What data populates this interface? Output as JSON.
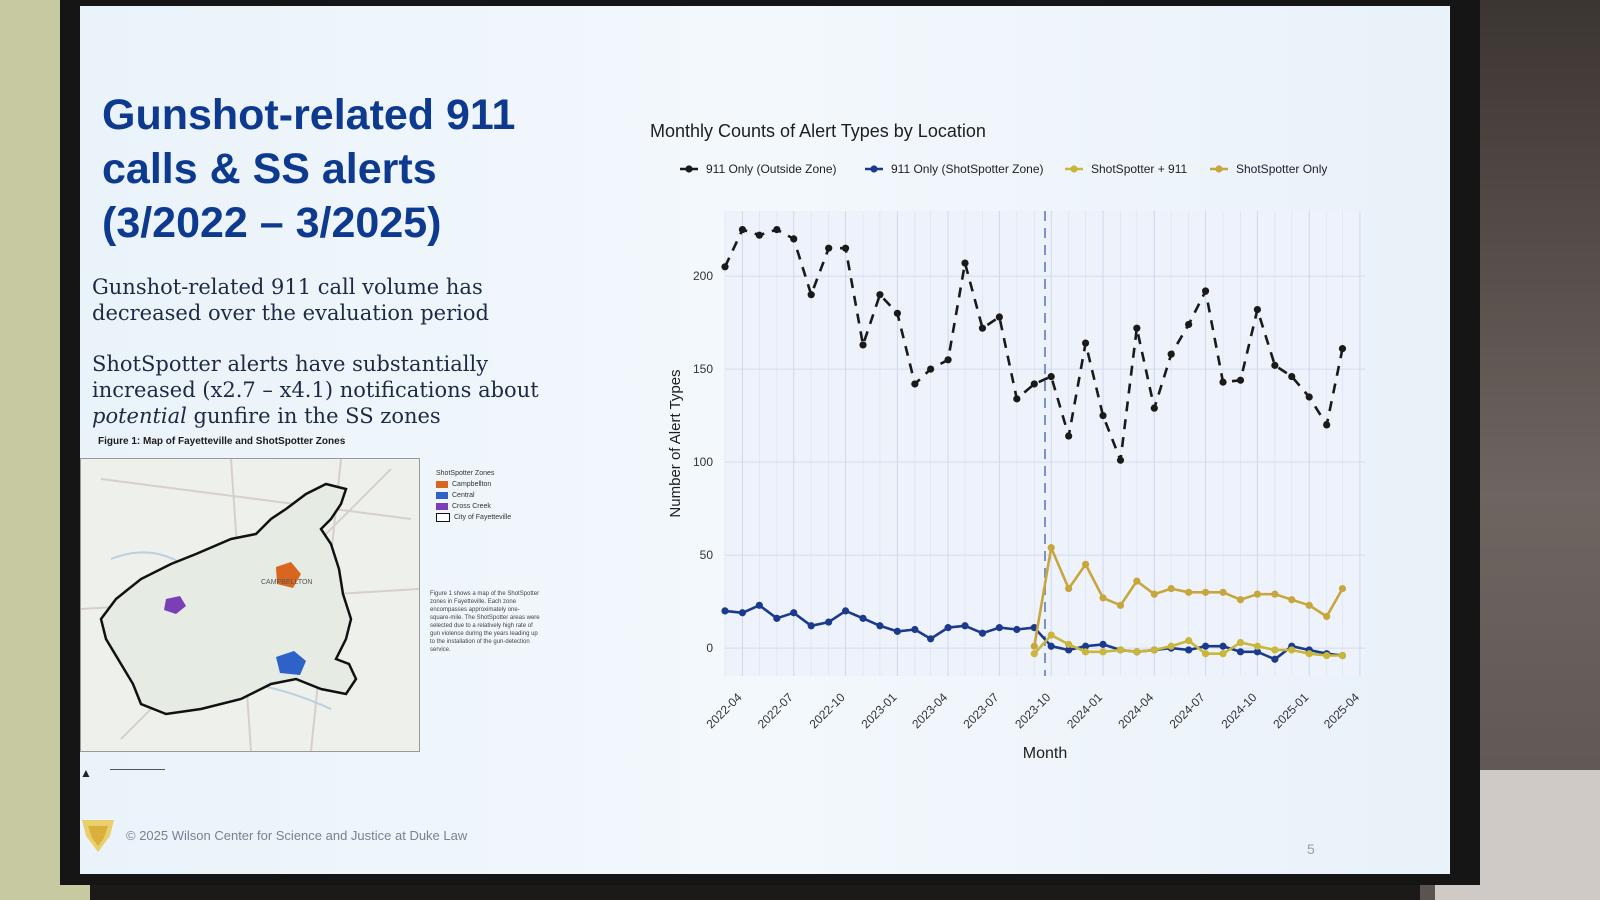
{
  "slide": {
    "title": "Gunshot-related 911\ncalls & SS alerts\n(3/2022 – 3/2025)",
    "bullet1": "Gunshot-related 911 call volume has decreased over the evaluation period",
    "bullet2_part1": "ShotSpotter alerts have substantially increased (x2.7 – x4.1) notifications about ",
    "bullet2_emph": "potential",
    "bullet2_part2": " gunfire in the SS zones",
    "figure_caption": "Figure 1: Map of Fayetteville and ShotSpotter Zones",
    "footer": "© 2025 Wilson Center for Science and Justice at Duke Law",
    "page_number": "5",
    "map": {
      "legend_title": "ShotSpotter Zones",
      "legend_items": [
        {
          "label": "Campbellton",
          "color": "#d9661e"
        },
        {
          "label": "Central",
          "color": "#2f62c8"
        },
        {
          "label": "Cross Creek",
          "color": "#7b3fb5"
        },
        {
          "label": "City of Fayetteville",
          "color": "#ffffff"
        }
      ],
      "area_label": "CAMPBELLTON",
      "note": "Figure 1 shows a map of the ShotSpotter zones in Fayetteville. Each zone encompasses approximately one-square-mile. The ShotSpotter areas were selected due to a relatively high rate of gun violence during the years leading up to the installation of the gun-detection service."
    }
  },
  "chart_data": {
    "type": "line",
    "title": "Monthly Counts of Alert Types by Location",
    "xlabel": "Month",
    "ylabel": "Number of Alert Types",
    "x": [
      "2022-03",
      "2022-04",
      "2022-05",
      "2022-06",
      "2022-07",
      "2022-08",
      "2022-09",
      "2022-10",
      "2022-11",
      "2022-12",
      "2023-01",
      "2023-02",
      "2023-03",
      "2023-04",
      "2023-05",
      "2023-06",
      "2023-07",
      "2023-08",
      "2023-09",
      "2023-10",
      "2023-11",
      "2023-12",
      "2024-01",
      "2024-02",
      "2024-03",
      "2024-04",
      "2024-05",
      "2024-06",
      "2024-07",
      "2024-08",
      "2024-09",
      "2024-10",
      "2024-11",
      "2024-12",
      "2025-01",
      "2025-02",
      "2025-03"
    ],
    "x_tick_labels": [
      "2022-04",
      "2022-07",
      "2022-10",
      "2023-01",
      "2023-04",
      "2023-07",
      "2023-10",
      "2024-01",
      "2024-04",
      "2024-07",
      "2024-10",
      "2025-01",
      "2025-04"
    ],
    "y_ticks": [
      0,
      50,
      100,
      150,
      200
    ],
    "ylim": [
      -15,
      235
    ],
    "event_line_x": "2023-09-20",
    "grid": true,
    "legend_position": "top",
    "series": [
      {
        "name": "911 Only (Outside Zone)",
        "color": "#1a1a1a",
        "dashed": true,
        "values": [
          205,
          225,
          222,
          225,
          220,
          190,
          215,
          215,
          163,
          190,
          180,
          142,
          150,
          155,
          207,
          172,
          178,
          134,
          142,
          146,
          114,
          164,
          125,
          101,
          172,
          129,
          158,
          174,
          192,
          143,
          144,
          182,
          152,
          146,
          135,
          120,
          161
        ]
      },
      {
        "name": "911 Only (ShotSpotter Zone)",
        "color": "#1b3a8c",
        "dashed": false,
        "values": [
          20,
          19,
          23,
          16,
          19,
          12,
          14,
          20,
          16,
          12,
          9,
          10,
          5,
          11,
          12,
          8,
          11,
          10,
          11,
          1,
          -1,
          1,
          2,
          -1,
          -2,
          -1,
          0,
          -1,
          1,
          1,
          -2,
          -2,
          -6,
          1,
          -1,
          -3,
          -4
        ]
      },
      {
        "name": "ShotSpotter + 911",
        "color": "#c9b63a",
        "dashed": false,
        "values": [
          null,
          null,
          null,
          null,
          null,
          null,
          null,
          null,
          null,
          null,
          null,
          null,
          null,
          null,
          null,
          null,
          null,
          null,
          -3,
          7,
          2,
          -2,
          -2,
          -1,
          -2,
          -1,
          1,
          4,
          -3,
          -3,
          3,
          1,
          -1,
          -1,
          -3,
          -4,
          -4
        ]
      },
      {
        "name": "ShotSpotter Only",
        "color": "#c7a73d",
        "dashed": false,
        "values": [
          null,
          null,
          null,
          null,
          null,
          null,
          null,
          null,
          null,
          null,
          null,
          null,
          null,
          null,
          null,
          null,
          null,
          null,
          1,
          54,
          32,
          45,
          27,
          23,
          36,
          29,
          32,
          30,
          30,
          30,
          26,
          29,
          29,
          26,
          23,
          17,
          32
        ]
      }
    ]
  }
}
